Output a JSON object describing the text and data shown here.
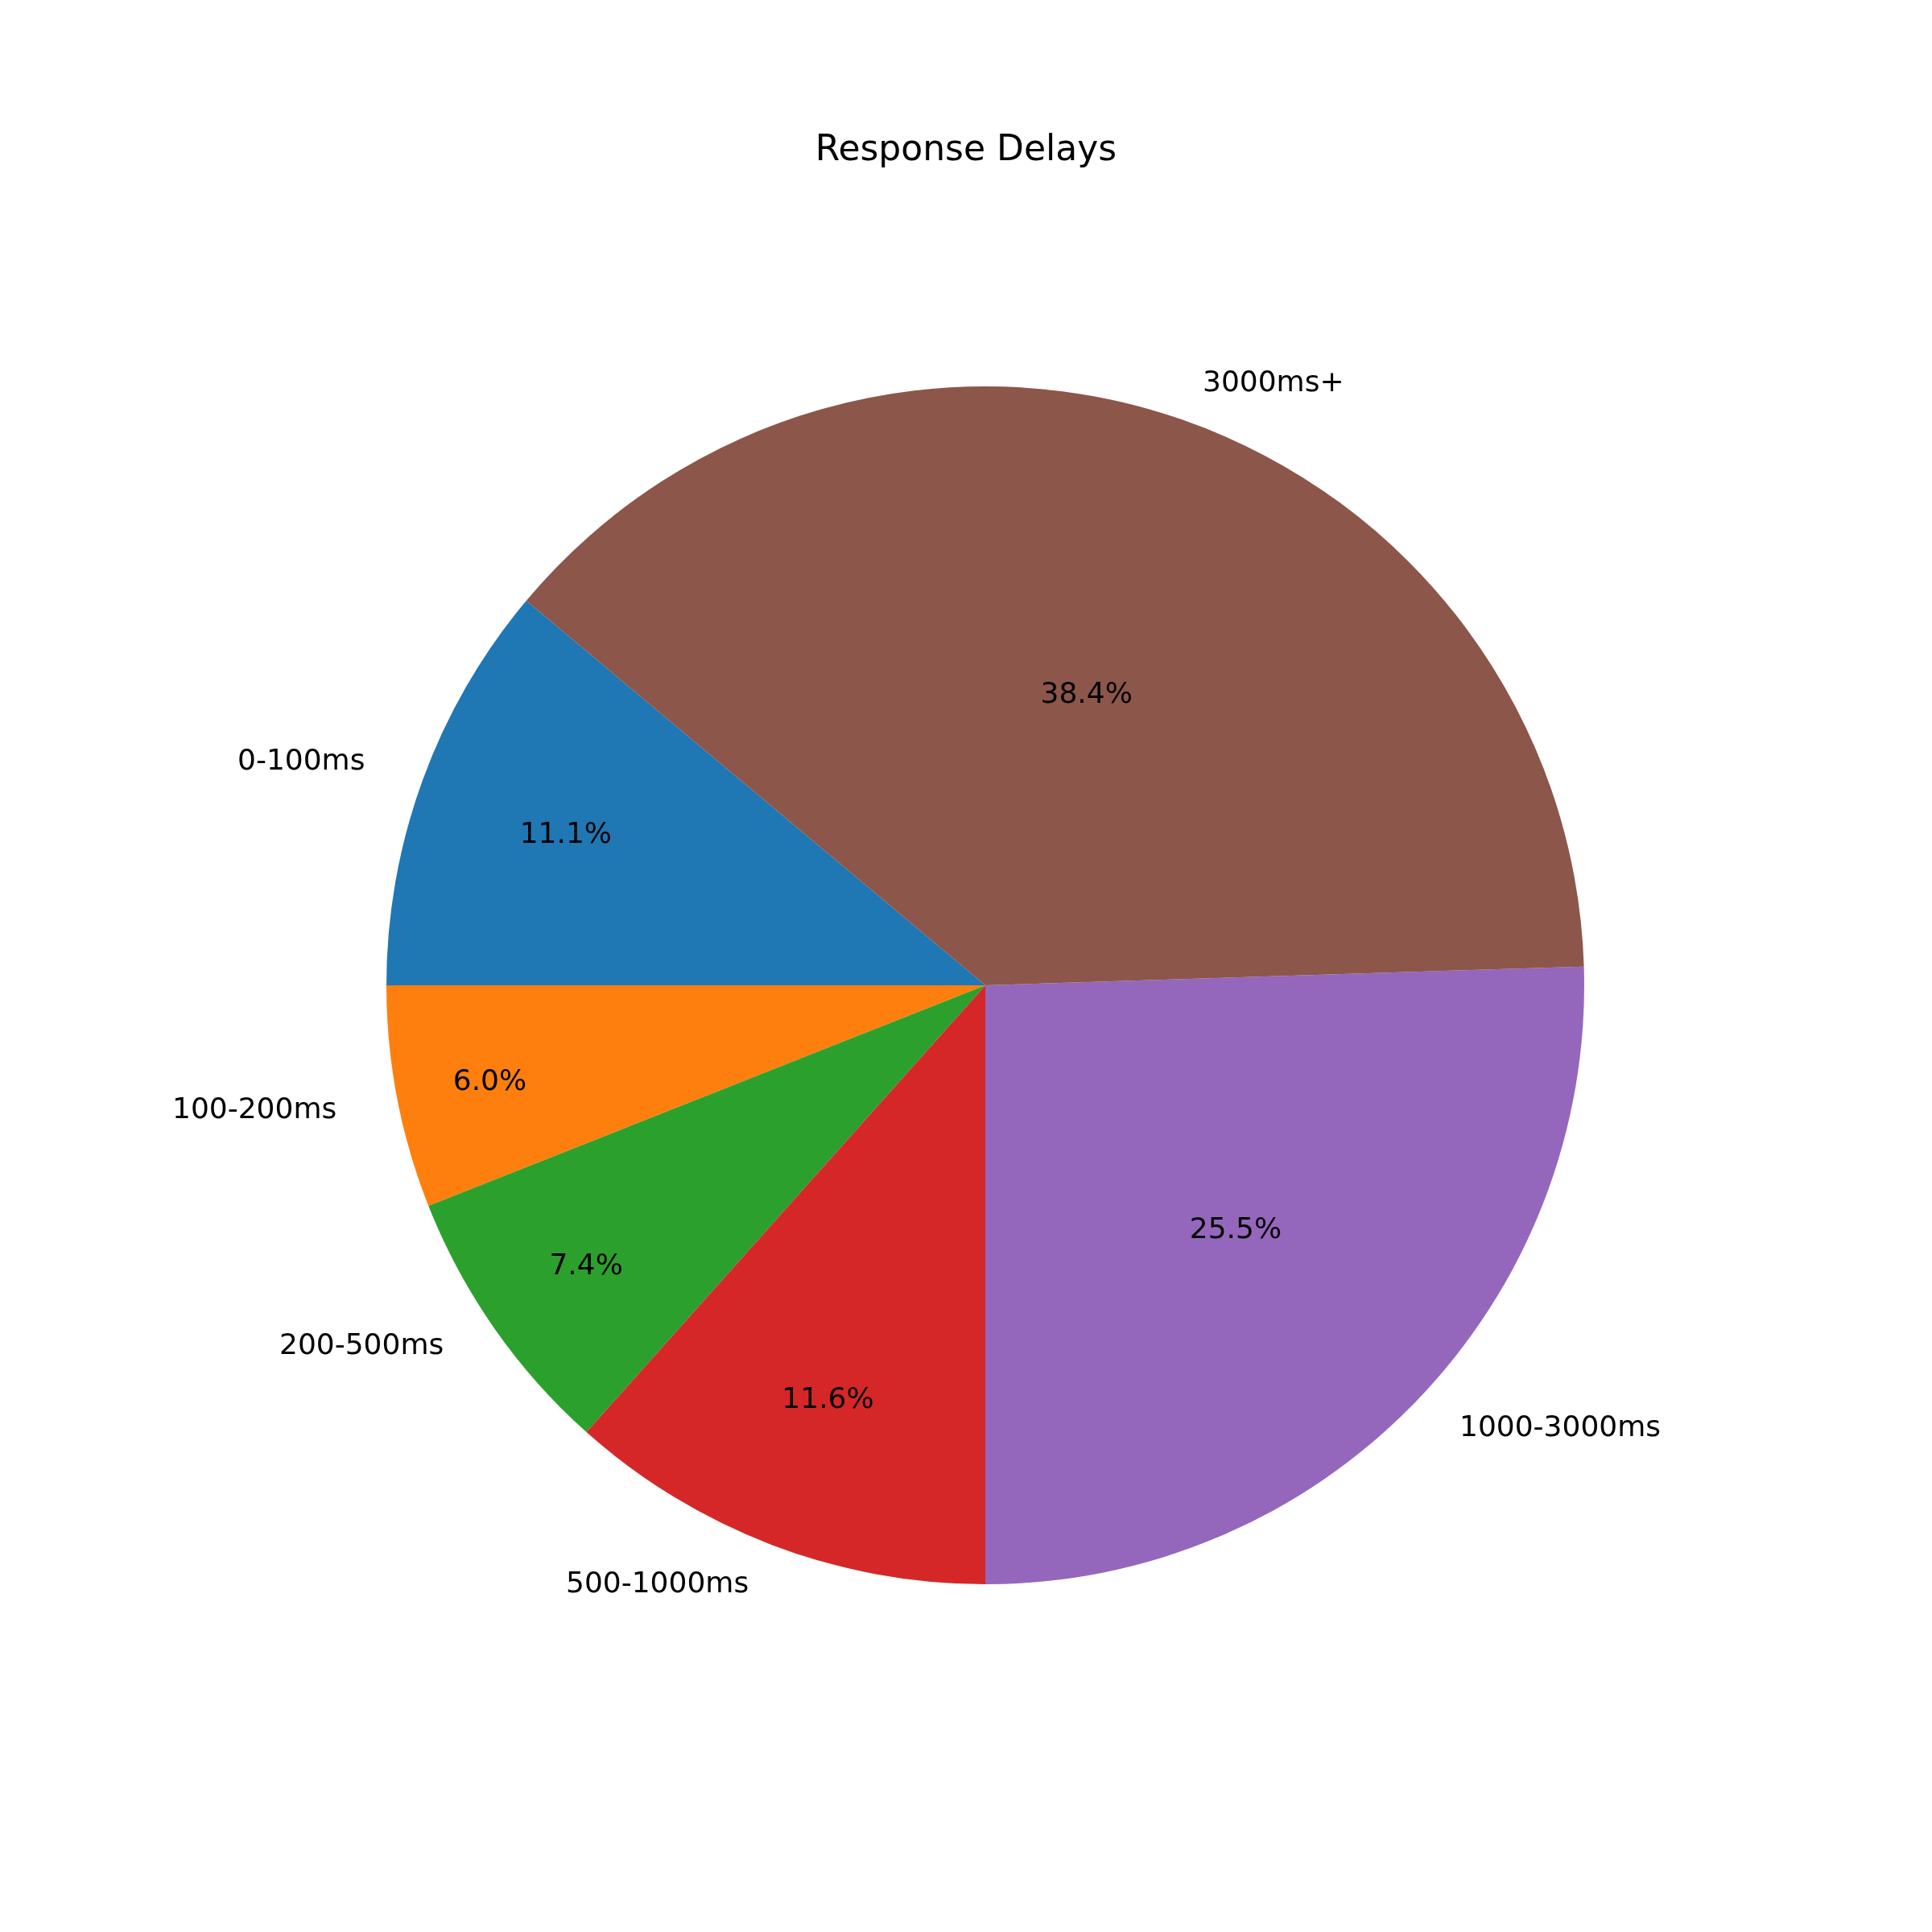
{
  "chart_data": {
    "type": "pie",
    "title": "Response Delays",
    "categories": [
      "0-100ms",
      "100-200ms",
      "200-500ms",
      "500-1000ms",
      "1000-3000ms",
      "3000ms+"
    ],
    "values": [
      11.1,
      6.0,
      7.4,
      11.6,
      25.5,
      38.4
    ],
    "colors": [
      "#1f77b4",
      "#ff7f0e",
      "#2ca02c",
      "#d62728",
      "#9467bd",
      "#8c564b"
    ],
    "value_labels": [
      "11.1%",
      "6.0%",
      "7.4%",
      "11.6%",
      "25.5%",
      "38.4%"
    ],
    "legend": false
  }
}
